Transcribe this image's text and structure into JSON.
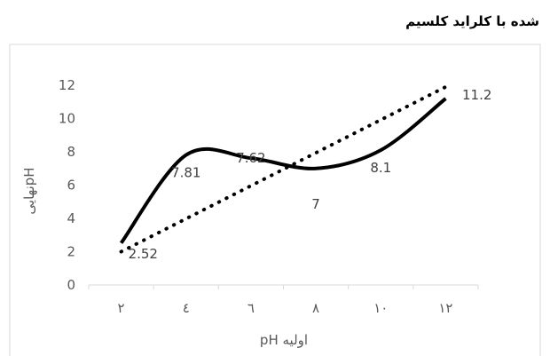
{
  "chart_data": {
    "type": "line",
    "title": "شده با کلراید کلسیم",
    "xlabel": "اولیه pH",
    "ylabel": "نهاییpH",
    "categories": [
      "۲",
      "٤",
      "٦",
      "٨",
      "١٠",
      "١٢"
    ],
    "yticks": [
      "0",
      "2",
      "4",
      "6",
      "8",
      "10",
      "12"
    ],
    "ylim": [
      0,
      12
    ],
    "grid": false,
    "legend": "none",
    "series": [
      {
        "values": [
          2.52,
          7.81,
          7.62,
          7,
          8.1,
          11.2
        ],
        "labels": [
          "2.52",
          "7.81",
          "7.62",
          "7",
          "8.1",
          "11.2"
        ],
        "color": "#000000",
        "style": "smooth-solid"
      }
    ],
    "trendline": {
      "type": "linear",
      "from": 2.0,
      "to": 11.9,
      "style": "dotted",
      "color": "#000000"
    }
  }
}
